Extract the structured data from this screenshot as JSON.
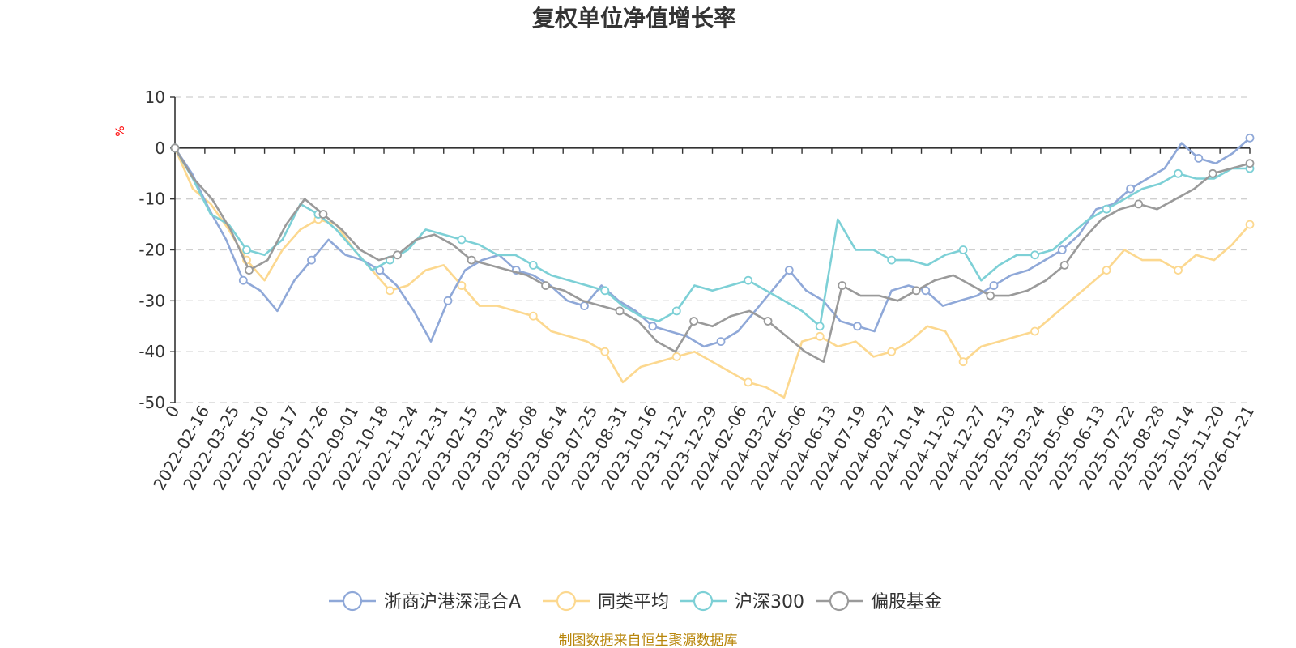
{
  "chart_data": {
    "type": "line",
    "title": "复权单位净值增长率",
    "ylabel": "%",
    "xlabel": "",
    "ylim": [
      -50,
      10
    ],
    "yticks": [
      10,
      0,
      -10,
      -20,
      -30,
      -40,
      -50
    ],
    "x_tick_labels": [
      "0",
      "2022-02-16",
      "2022-03-25",
      "2022-05-10",
      "2022-06-17",
      "2022-07-26",
      "2022-09-01",
      "2022-10-18",
      "2022-11-24",
      "2022-12-31",
      "2023-02-15",
      "2023-03-24",
      "2023-05-08",
      "2023-06-14",
      "2023-07-25",
      "2023-08-31",
      "2023-10-16",
      "2023-11-22",
      "2023-12-29",
      "2024-02-06",
      "2024-03-22",
      "2024-05-06",
      "2024-06-13",
      "2024-07-19",
      "2024-08-27",
      "2024-10-14",
      "2024-11-20",
      "2024-12-27",
      "2025-02-13",
      "2025-03-24",
      "2025-05-06",
      "2025-06-13",
      "2025-07-22",
      "2025-08-28",
      "2025-10-14",
      "2025-11-20",
      "2026-01-21"
    ],
    "grid": true,
    "legend_position": "bottom",
    "series": [
      {
        "name": "浙商沪港深混合A",
        "color": "#8fa8d8",
        "values": [
          0,
          -5,
          -12,
          -18,
          -26,
          -28,
          -32,
          -26,
          -22,
          -18,
          -21,
          -22,
          -24,
          -27,
          -32,
          -38,
          -30,
          -24,
          -22,
          -21,
          -24,
          -25,
          -27,
          -30,
          -31,
          -27,
          -30,
          -32,
          -35,
          -36,
          -37,
          -39,
          -38,
          -36,
          -32,
          -28,
          -24,
          -28,
          -30,
          -34,
          -35,
          -36,
          -28,
          -27,
          -28,
          -31,
          -30,
          -29,
          -27,
          -25,
          -24,
          -22,
          -20,
          -17,
          -12,
          -11,
          -8,
          -6,
          -4,
          1,
          -2,
          -3,
          -1,
          2
        ]
      },
      {
        "name": "同类平均",
        "color": "#fcd88f",
        "values": [
          0,
          -8,
          -11,
          -16,
          -22,
          -26,
          -20,
          -16,
          -14,
          -15,
          -20,
          -24,
          -28,
          -27,
          -24,
          -23,
          -27,
          -31,
          -31,
          -32,
          -33,
          -36,
          -37,
          -38,
          -40,
          -46,
          -43,
          -42,
          -41,
          -40,
          -42,
          -44,
          -46,
          -47,
          -49,
          -38,
          -37,
          -39,
          -38,
          -41,
          -40,
          -38,
          -35,
          -36,
          -42,
          -39,
          -38,
          -37,
          -36,
          -33,
          -30,
          -27,
          -24,
          -20,
          -22,
          -22,
          -24,
          -21,
          -22,
          -19,
          -15
        ]
      },
      {
        "name": "沪深300",
        "color": "#7dd0d6",
        "values": [
          0,
          -6,
          -13,
          -15,
          -20,
          -21,
          -18,
          -11,
          -13,
          -16,
          -20,
          -24,
          -22,
          -20,
          -16,
          -17,
          -18,
          -19,
          -21,
          -21,
          -23,
          -25,
          -26,
          -27,
          -28,
          -31,
          -33,
          -34,
          -32,
          -27,
          -28,
          -27,
          -26,
          -28,
          -30,
          -32,
          -35,
          -14,
          -20,
          -20,
          -22,
          -22,
          -23,
          -21,
          -20,
          -26,
          -23,
          -21,
          -21,
          -20,
          -17,
          -14,
          -12,
          -10,
          -8,
          -7,
          -5,
          -6,
          -6,
          -4,
          -4
        ]
      },
      {
        "name": "偏股基金",
        "color": "#9a9a9a",
        "values": [
          0,
          -6,
          -10,
          -16,
          -24,
          -22,
          -15,
          -10,
          -13,
          -16,
          -20,
          -22,
          -21,
          -18,
          -17,
          -19,
          -22,
          -23,
          -24,
          -25,
          -27,
          -28,
          -30,
          -31,
          -32,
          -34,
          -38,
          -40,
          -34,
          -35,
          -33,
          -32,
          -34,
          -37,
          -40,
          -42,
          -27,
          -29,
          -29,
          -30,
          -28,
          -26,
          -25,
          -27,
          -29,
          -29,
          -28,
          -26,
          -23,
          -18,
          -14,
          -12,
          -11,
          -12,
          -10,
          -8,
          -5,
          -4,
          -3
        ]
      }
    ]
  },
  "source_text": "制图数据来自恒生聚源数据库"
}
